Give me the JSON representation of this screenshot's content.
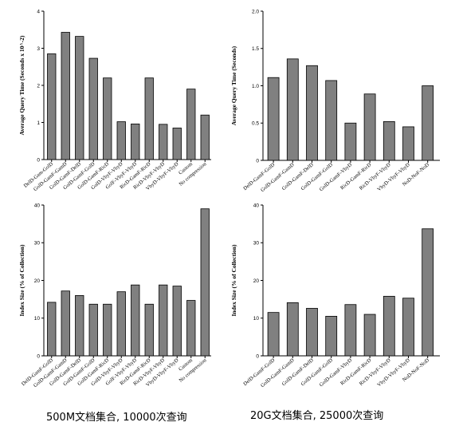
{
  "captions": {
    "left": "500M文档集合, 10000次查询",
    "right": "20G文档集合, 25000次查询"
  },
  "chart_data": [
    {
      "type": "bar",
      "ylabel": "Average Query Time (Seconds x 10^-2)",
      "ylim": [
        0,
        4
      ],
      "yticks": [
        0,
        1,
        2,
        3,
        4
      ],
      "ytick_labels": [
        "0",
        "1",
        "2",
        "3",
        "4"
      ],
      "categories": [
        "DelD-Gam-GolD",
        "GolD-GamF-GamD",
        "GolD-GamF-DelD",
        "GolD-GamF-GolD",
        "GolD-GamF-RicD",
        "GolD-VbyF-VbyD",
        "GolF-VbyF-VbyD",
        "RicD-GamF-RicD",
        "RicD-VbyF-VbyD",
        "VbyD-VbyF-VbyD",
        "Custom",
        "No compression"
      ],
      "values": [
        2.85,
        3.43,
        3.32,
        2.73,
        2.2,
        1.02,
        0.96,
        2.2,
        0.95,
        0.85,
        1.9,
        1.2
      ]
    },
    {
      "type": "bar",
      "ylabel": "Average Query Time (Seconds)",
      "ylim": [
        0,
        2.0
      ],
      "yticks": [
        0,
        0.5,
        1.0,
        1.5,
        2.0
      ],
      "ytick_labels": [
        "0",
        "0.5",
        "1.0",
        "1.5",
        "2.0"
      ],
      "categories": [
        "DelD-GamF-GolD",
        "GolD-GamF-GamD",
        "GolD-GamF-DelD",
        "GolD-GamF-GolD",
        "GolD-GamF-VbyD",
        "RicD-GamF-RicD",
        "RicD-VbyF-VbyD",
        "VbyD-VbyF-VbyD",
        "NoD-NoF-NoD"
      ],
      "values": [
        1.11,
        1.36,
        1.27,
        1.07,
        0.5,
        0.89,
        0.52,
        0.45,
        1.0
      ]
    },
    {
      "type": "bar",
      "ylabel": "Index Size (% of Collection)",
      "ylim": [
        0,
        40
      ],
      "yticks": [
        0,
        10,
        20,
        30,
        40
      ],
      "ytick_labels": [
        "0",
        "10",
        "20",
        "30",
        "40"
      ],
      "categories": [
        "DelD-GamF-GolD",
        "GolD-GamF-GamD",
        "GolD-GamF-DelD",
        "GolD-GamF-GolD",
        "GolD-GamF-RicD",
        "GolD-VbyF-VbyD",
        "GolF-VbyF-VbyD",
        "RicD-GamF-RicD",
        "RicD-VbyF-VbyD",
        "VbyD-VbyF-VbyD",
        "Custom",
        "No compression"
      ],
      "values": [
        14.2,
        17.2,
        16.0,
        13.7,
        13.7,
        17.0,
        18.8,
        13.7,
        18.8,
        18.5,
        14.7,
        39.0
      ]
    },
    {
      "type": "bar",
      "ylabel": "Index Size (% of Collection)",
      "ylim": [
        0,
        40
      ],
      "yticks": [
        0,
        10,
        20,
        30,
        40
      ],
      "ytick_labels": [
        "0",
        "10",
        "20",
        "30",
        "40"
      ],
      "categories": [
        "DelD-GamF-GolD",
        "GolD-GamF-GamD",
        "GolD-GamF-DelD",
        "GolD-GamF-GolD",
        "GolD-GamF-VbyD",
        "RicD-GamF-RicD",
        "RicD-VbyF-VbyD",
        "VbyD-VbyF-VbyD",
        "NoD-NoF-NoD"
      ],
      "values": [
        11.5,
        14.1,
        12.6,
        10.5,
        13.6,
        11.0,
        15.8,
        15.3,
        33.7
      ]
    }
  ]
}
